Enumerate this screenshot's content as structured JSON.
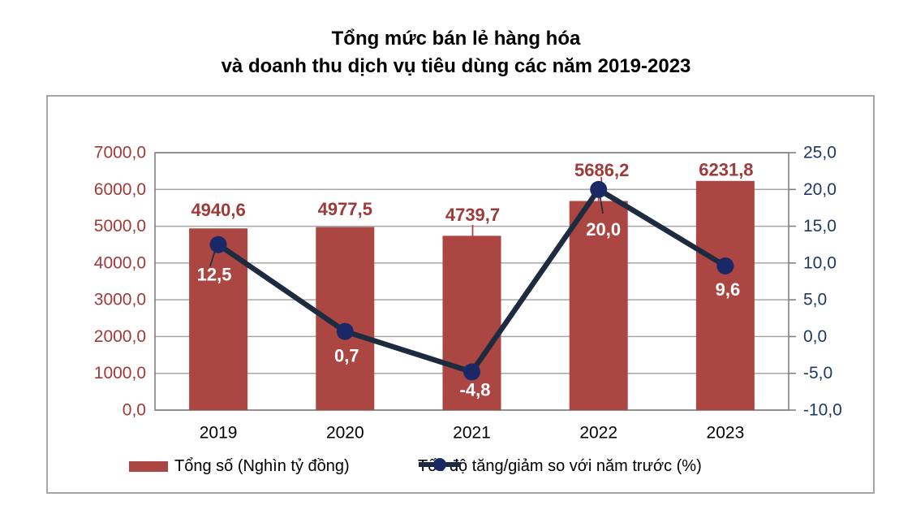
{
  "title": {
    "line1": "Tổng mức bán lẻ hàng hóa",
    "line2": "và doanh thu dịch vụ tiêu dùng các năm 2019-2023"
  },
  "chart_data": {
    "type": "combo-bar-line",
    "categories": [
      "2019",
      "2020",
      "2021",
      "2022",
      "2023"
    ],
    "series": [
      {
        "name": "Tổng số (Nghìn tỷ đồng)",
        "type": "bar",
        "axis": "left",
        "color": "#ab4643",
        "values": [
          4940.6,
          4977.5,
          4739.7,
          5686.2,
          6231.8
        ],
        "labels": [
          "4940,6",
          "4977,5",
          "4739,7",
          "5686,2",
          "6231,8"
        ],
        "label_color": "#9e3a38"
      },
      {
        "name": "Tốc độ tăng/giảm so với năm trước (%)",
        "type": "line",
        "axis": "right",
        "color": "#1c2b3f",
        "marker_color": "#1a2966",
        "values": [
          12.5,
          0.7,
          -4.8,
          20.0,
          9.6
        ],
        "labels": [
          "12,5",
          "0,7",
          "-4,8",
          "20,0",
          "9,6"
        ],
        "label_color": "#ffffff"
      }
    ],
    "left_axis": {
      "min": 0,
      "max": 7000,
      "tick_labels": [
        "7000,0",
        "6000,0",
        "5000,0",
        "4000,0",
        "3000,0",
        "2000,0",
        "1000,0",
        "0,0"
      ],
      "color": "#9e3a38"
    },
    "right_axis": {
      "min": -10,
      "max": 25,
      "tick_labels": [
        "25,0",
        "20,0",
        "15,0",
        "10,0",
        "5,0",
        "0,0",
        "-5,0",
        "-10,0"
      ],
      "color": "#1f3864"
    },
    "grid": true,
    "legend_position": "bottom",
    "category_label_color": "#000000",
    "leader_line_red": "#b5413c"
  }
}
